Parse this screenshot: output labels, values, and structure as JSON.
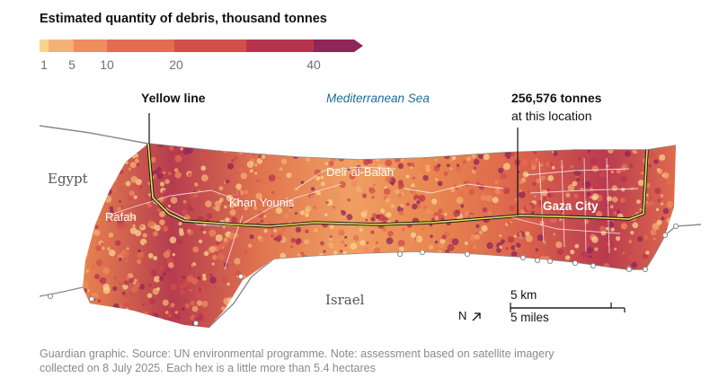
{
  "legend": {
    "title": "Estimated quantity of debris, thousand tonnes",
    "ticks": [
      {
        "label": "1",
        "value": 1
      },
      {
        "label": "5",
        "value": 5
      },
      {
        "label": "10",
        "value": 10
      },
      {
        "label": "20",
        "value": 20
      },
      {
        "label": "40",
        "value": 40
      }
    ],
    "colors": [
      "#f9d48e",
      "#f5b074",
      "#ef8d5e",
      "#e46c50",
      "#d34d4b",
      "#b8344e",
      "#8e2658"
    ]
  },
  "map": {
    "sea_label": "Mediterranean Sea",
    "egypt_label": "Egypt",
    "israel_label": "Israel",
    "yellow_line_label": "Yellow line",
    "cities": {
      "rafah": "Rafah",
      "khan_younis": "Khan Younis",
      "deir_al_balah": "Deir al-Balah",
      "gaza_city": "Gaza City"
    },
    "annotation": {
      "value": "256,576 tonnes",
      "text": "at this location"
    },
    "north_label": "N",
    "north_arrow": "arrow-northeast-icon",
    "scale": {
      "km": "5 km",
      "miles": "5 miles"
    },
    "colors": {
      "yellow_line": "#e8e35a",
      "border": "#8a8a8a"
    }
  },
  "footer": {
    "line1": "Guardian graphic. Source: UN environmental programme. Note: assessment based on satellite imagery",
    "line2": "collected on 8 July 2025. Each hex is a little more than 5.4 hectares"
  }
}
